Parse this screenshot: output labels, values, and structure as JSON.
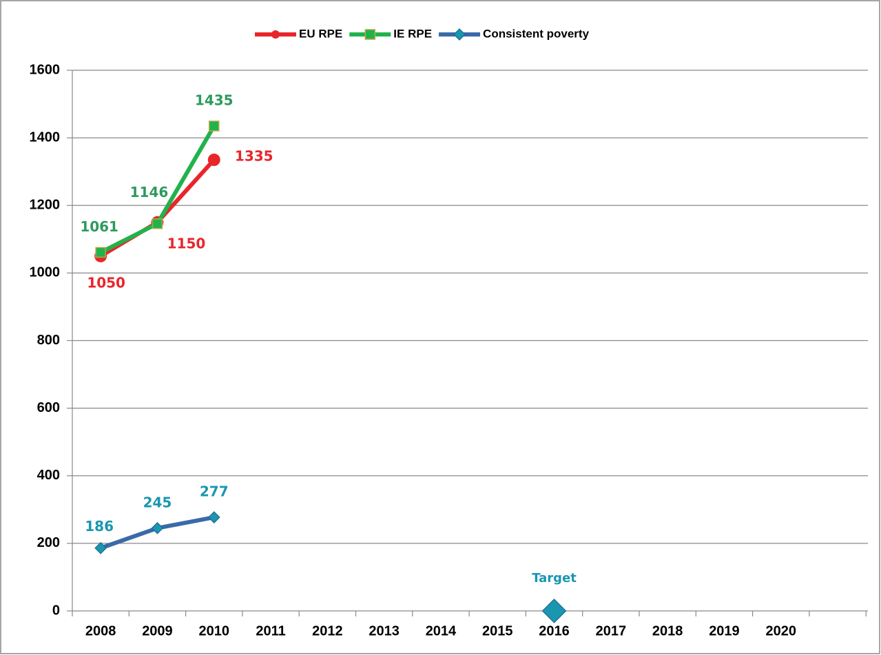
{
  "chart_data": {
    "type": "line",
    "categories": [
      "2008",
      "2009",
      "2010",
      "2011",
      "2012",
      "2013",
      "2014",
      "2015",
      "2016",
      "2017",
      "2018",
      "2019",
      "2020",
      null
    ],
    "series": [
      {
        "name": "EU RPE",
        "color": "#e8262a",
        "label_color": "#e8262a",
        "marker": "circle",
        "values": [
          1050,
          1150,
          1335,
          null,
          null,
          null,
          null,
          null,
          null,
          null,
          null,
          null,
          null,
          null
        ]
      },
      {
        "name": "IE RPE",
        "color": "#22b24c",
        "label_color": "#2e9a5c",
        "marker": "square",
        "values": [
          1061,
          1146,
          1435,
          null,
          null,
          null,
          null,
          null,
          null,
          null,
          null,
          null,
          null,
          null
        ]
      },
      {
        "name": "Consistent poverty",
        "color": "#3a6aa8",
        "label_color": "#1a96b0",
        "marker": "diamond",
        "values": [
          186,
          245,
          277,
          null,
          null,
          null,
          null,
          null,
          null,
          null,
          null,
          null,
          null,
          null
        ]
      }
    ],
    "target": {
      "label": "Target",
      "x": "2016",
      "value": 0,
      "color": "#1a96b0"
    },
    "ylim": [
      0,
      1600
    ],
    "yticks": [
      0,
      200,
      400,
      600,
      800,
      1000,
      1200,
      1400,
      1600
    ],
    "grid": true,
    "legend": "top"
  }
}
